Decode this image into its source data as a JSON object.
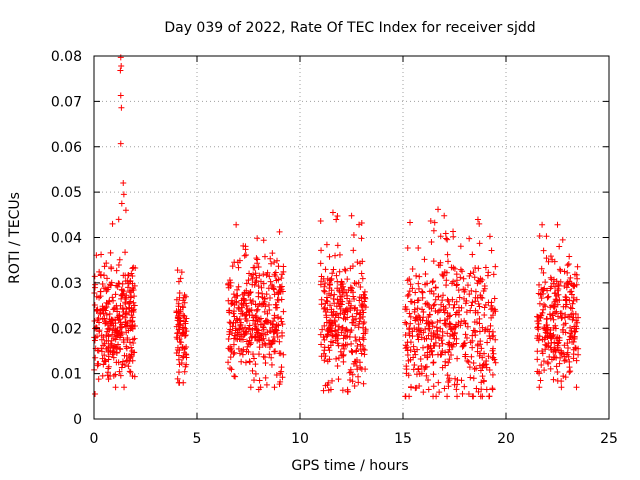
{
  "chart_data": {
    "type": "scatter",
    "title": "Day 039 of 2022, Rate Of TEC Index for receiver sjdd",
    "xlabel": "GPS time / hours",
    "ylabel": "ROTI / TECUs",
    "xlim": [
      0,
      25
    ],
    "ylim": [
      0,
      0.08
    ],
    "x_ticks": [
      0,
      5,
      10,
      15,
      20,
      25
    ],
    "x_tick_labels": [
      "0",
      "5",
      "10",
      "15",
      "20",
      "25"
    ],
    "y_ticks": [
      0,
      0.01,
      0.02,
      0.03,
      0.04,
      0.05,
      0.06,
      0.07,
      0.08
    ],
    "y_tick_labels": [
      "0",
      "0.01",
      "0.02",
      "0.03",
      "0.04",
      "0.05",
      "0.06",
      "0.07",
      "0.08"
    ],
    "grid": true,
    "marker": "+",
    "color": "#ff0000",
    "series": [
      {
        "name": "ROTI",
        "clusters": [
          {
            "x_range": [
              0.0,
              2.0
            ],
            "y_min": 0.007,
            "y_max": 0.04,
            "median": 0.021,
            "count": 320
          },
          {
            "x_range": [
              4.0,
              4.5
            ],
            "y_min": 0.008,
            "y_max": 0.036,
            "median": 0.018,
            "count": 90
          },
          {
            "x_range": [
              6.5,
              9.2
            ],
            "y_min": 0.007,
            "y_max": 0.042,
            "median": 0.021,
            "count": 360
          },
          {
            "x_range": [
              11.0,
              13.2
            ],
            "y_min": 0.006,
            "y_max": 0.045,
            "median": 0.021,
            "count": 300
          },
          {
            "x_range": [
              15.1,
              19.5
            ],
            "y_min": 0.005,
            "y_max": 0.046,
            "median": 0.02,
            "count": 480
          },
          {
            "x_range": [
              21.5,
              23.5
            ],
            "y_min": 0.007,
            "y_max": 0.043,
            "median": 0.021,
            "count": 280
          }
        ],
        "outliers": [
          {
            "x": 0.05,
            "y": 0.0055
          },
          {
            "x": 1.3,
            "y": 0.0797
          },
          {
            "x": 1.32,
            "y": 0.0778
          },
          {
            "x": 1.28,
            "y": 0.0768
          },
          {
            "x": 1.3,
            "y": 0.0713
          },
          {
            "x": 1.33,
            "y": 0.0686
          },
          {
            "x": 1.3,
            "y": 0.0607
          },
          {
            "x": 1.42,
            "y": 0.052
          },
          {
            "x": 1.45,
            "y": 0.0495
          },
          {
            "x": 1.35,
            "y": 0.0475
          },
          {
            "x": 1.55,
            "y": 0.046
          },
          {
            "x": 0.9,
            "y": 0.043
          },
          {
            "x": 1.2,
            "y": 0.044
          },
          {
            "x": 6.9,
            "y": 0.0428
          },
          {
            "x": 11.6,
            "y": 0.0455
          },
          {
            "x": 13.0,
            "y": 0.0432
          },
          {
            "x": 16.7,
            "y": 0.0462
          },
          {
            "x": 17.0,
            "y": 0.0448
          },
          {
            "x": 16.5,
            "y": 0.0415
          },
          {
            "x": 18.7,
            "y": 0.043
          },
          {
            "x": 22.5,
            "y": 0.0428
          },
          {
            "x": 18.2,
            "y": 0.0055
          },
          {
            "x": 15.6,
            "y": 0.0068
          },
          {
            "x": 8.0,
            "y": 0.0065
          }
        ]
      }
    ]
  }
}
